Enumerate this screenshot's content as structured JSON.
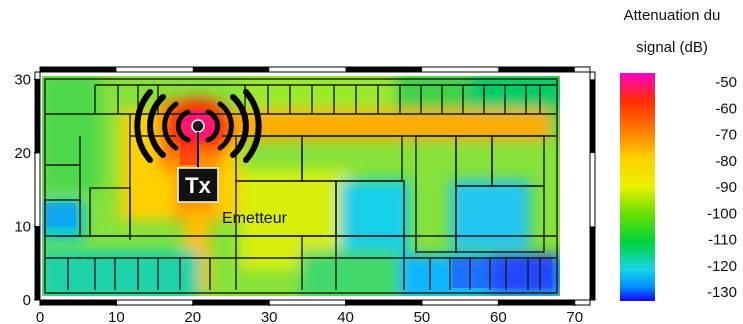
{
  "chart_data": {
    "type": "heatmap",
    "title": "",
    "legend_title": [
      "Attenuation du",
      "signal (dB)"
    ],
    "xlabel": "",
    "ylabel": "",
    "xlim": [
      0,
      72
    ],
    "ylim": [
      0,
      31
    ],
    "x_ticks": [
      "0",
      "10",
      "20",
      "30",
      "40",
      "50",
      "60",
      "70"
    ],
    "y_ticks": [
      "0",
      "10",
      "20",
      "30"
    ],
    "colorbar": {
      "range": [
        -130,
        -50
      ],
      "ticks": [
        "-50",
        "-60",
        "-70",
        "-80",
        "-90",
        "-100",
        "-110",
        "-120",
        "-130"
      ],
      "colors": [
        "#ff00cc",
        "#ff2a00",
        "#ff7a00",
        "#ffd000",
        "#e8f000",
        "#66e000",
        "#00d23a",
        "#16d6e6",
        "#008cff",
        "#1b00ff"
      ]
    },
    "transmitter": {
      "x": 22,
      "y": 23,
      "label": "Tx",
      "caption": "Emetteur",
      "signal_db": -50
    }
  }
}
